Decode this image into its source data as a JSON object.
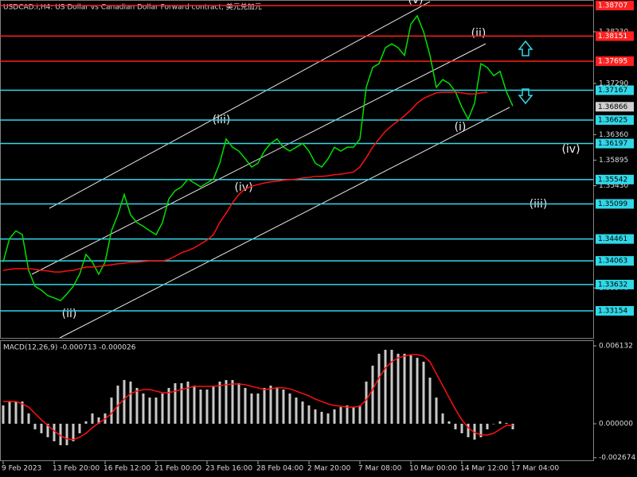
{
  "chart_data": [
    {
      "type": "line",
      "title": "USDCAD.i,H4: US Dollar vs Canadian Dollar Forward contract, 美元兑加元",
      "categories": [
        "9 Feb 2023",
        null,
        null,
        null,
        null,
        null,
        null,
        null,
        "13 Feb 20:00",
        null,
        null,
        null,
        null,
        null,
        null,
        null,
        "16 Feb 12:00",
        null,
        null,
        null,
        null,
        null,
        null,
        null,
        "21 Feb 00:00",
        null,
        null,
        null,
        null,
        null,
        null,
        null,
        "23 Feb 16:00",
        null,
        null,
        null,
        null,
        null,
        null,
        null,
        "28 Feb 04:00",
        null,
        null,
        null,
        null,
        null,
        null,
        null,
        "2 Mar 20:00",
        null,
        null,
        null,
        null,
        null,
        null,
        null,
        "7 Mar 08:00",
        null,
        null,
        null,
        null,
        null,
        null,
        null,
        "10 Mar 00:00",
        null,
        null,
        null,
        null,
        null,
        null,
        null,
        "14 Mar 12:00",
        null,
        null,
        null,
        null,
        null,
        null,
        null,
        "17 Mar 04:00"
      ],
      "series": [
        {
          "color": "#00e000",
          "values": [
            1.3404,
            1.3447,
            1.3461,
            1.3454,
            1.3389,
            1.336,
            1.3353,
            1.3343,
            1.3339,
            1.3334,
            1.3346,
            1.336,
            1.3382,
            1.3418,
            1.3404,
            1.3382,
            1.3404,
            1.3461,
            1.349,
            1.3527,
            1.349,
            1.3476,
            1.3469,
            1.3461,
            1.3454,
            1.3476,
            1.3519,
            1.3534,
            1.3541,
            1.3555,
            1.3548,
            1.3541,
            1.3548,
            1.3555,
            1.3584,
            1.3628,
            1.3613,
            1.3606,
            1.3592,
            1.3577,
            1.3584,
            1.3606,
            1.362,
            1.3628,
            1.3613,
            1.3606,
            1.3613,
            1.362,
            1.3606,
            1.3584,
            1.3577,
            1.3592,
            1.3613,
            1.3606,
            1.3613,
            1.3613,
            1.3628,
            1.3722,
            1.3758,
            1.3765,
            1.3794,
            1.3801,
            1.3794,
            1.378,
            1.3837,
            1.3852,
            1.3823,
            1.378,
            1.3722,
            1.3736,
            1.3729,
            1.3714,
            1.3686,
            1.3664,
            1.3693,
            1.3765,
            1.3758,
            1.3743,
            1.3751,
            1.3714,
            1.3688
          ]
        },
        {
          "color": "#ff1010",
          "values": [
            1.3389,
            1.3391,
            1.3392,
            1.3392,
            1.3392,
            1.3391,
            1.3389,
            1.3388,
            1.3386,
            1.3386,
            1.3388,
            1.3389,
            1.3392,
            1.3395,
            1.3395,
            1.3396,
            1.3398,
            1.3399,
            1.3401,
            1.3402,
            1.3404,
            1.3404,
            1.3405,
            1.3406,
            1.3406,
            1.3406,
            1.3409,
            1.3415,
            1.3421,
            1.3425,
            1.343,
            1.3437,
            1.3444,
            1.3454,
            1.3476,
            1.3493,
            1.3512,
            1.3527,
            1.3537,
            1.3542,
            1.3545,
            1.3548,
            1.355,
            1.3551,
            1.3553,
            1.3554,
            1.3555,
            1.3557,
            1.3558,
            1.356,
            1.356,
            1.3561,
            1.3563,
            1.3564,
            1.3566,
            1.3568,
            1.3577,
            1.3594,
            1.3613,
            1.3628,
            1.3642,
            1.3652,
            1.3661,
            1.367,
            1.3681,
            1.3693,
            1.3702,
            1.3707,
            1.3712,
            1.3713,
            1.3713,
            1.3713,
            1.3712,
            1.371,
            1.371,
            1.3712,
            1.3713,
            null,
            null,
            null,
            null
          ]
        }
      ],
      "ylim": [
        1.32662,
        1.38808
      ],
      "yticks": [
        {
          "value": 1.3823,
          "label": "1.38230"
        },
        {
          "value": 1.3729,
          "label": "1.37290"
        },
        {
          "value": 1.3636,
          "label": "1.36360"
        },
        {
          "value": 1.35895,
          "label": "1.35895"
        },
        {
          "value": 1.3543,
          "label": "1.35430"
        },
        {
          "value": 1.3357,
          "label": "1.33570"
        }
      ],
      "levels": [
        {
          "value": 1.38707,
          "color": "#ff2020"
        },
        {
          "value": 1.38151,
          "color": "#ff2020"
        },
        {
          "value": 1.37695,
          "color": "#ff2020"
        },
        {
          "value": 1.37167,
          "color": "#30d8e8"
        },
        {
          "value": 1.36625,
          "color": "#30d8e8"
        },
        {
          "value": 1.36197,
          "color": "#30d8e8"
        },
        {
          "value": 1.35542,
          "color": "#30d8e8"
        },
        {
          "value": 1.35099,
          "color": "#30d8e8"
        },
        {
          "value": 1.34461,
          "color": "#30d8e8"
        },
        {
          "value": 1.34063,
          "color": "#30d8e8"
        },
        {
          "value": 1.33632,
          "color": "#30d8e8"
        },
        {
          "value": 1.33154,
          "color": "#30d8e8"
        }
      ],
      "last_price": 1.36866,
      "annotations": [
        "(v)",
        "(ii)",
        "(iii)",
        "(iv)",
        "(ii)",
        "(i)",
        "(iv)",
        "(iii)"
      ]
    },
    {
      "type": "macd",
      "title": "MACD(12,26,9) -0.000713 -0.000026",
      "series": [
        {
          "color": "#c8c8c8",
          "values": [
            0.00144,
            0.00175,
            0.00175,
            0.00175,
            0.00081,
            -0.00044,
            -0.00075,
            -0.00106,
            -0.00138,
            -0.00169,
            -0.00169,
            -0.00138,
            -0.00075,
            0.00019,
            0.00081,
            0.0005,
            0.00081,
            0.00206,
            0.003,
            0.00344,
            0.00332,
            0.00282,
            0.00238,
            0.00206,
            0.00206,
            0.00238,
            0.00282,
            0.00319,
            0.00319,
            0.00332,
            0.003,
            0.00269,
            0.00269,
            0.003,
            0.00332,
            0.00344,
            0.00344,
            0.00319,
            0.00282,
            0.00238,
            0.00238,
            0.00282,
            0.003,
            0.00288,
            0.00269,
            0.00238,
            0.00206,
            0.00175,
            0.00144,
            0.00113,
            0.00094,
            0.00081,
            0.00113,
            0.00131,
            0.00144,
            0.00131,
            0.00144,
            0.00332,
            0.00457,
            0.00551,
            0.00582,
            0.00582,
            0.00551,
            0.00551,
            0.00538,
            0.00519,
            0.00488,
            0.00363,
            0.00206,
            0.00081,
            0.00019,
            -0.00044,
            -0.00075,
            -0.00106,
            -0.00125,
            -0.00106,
            -0.00044,
            0,
            0.00019,
            6e-05,
            -0.00044
          ]
        },
        {
          "color": "#ff1010",
          "values": [
            0.00175,
            0.00175,
            0.00175,
            0.00156,
            0.00131,
            0.00081,
            0.00031,
            -0.00013,
            -0.00056,
            -0.00094,
            -0.00119,
            -0.00125,
            -0.00106,
            -0.00075,
            -0.00031,
            6e-05,
            0.00038,
            0.00081,
            0.00144,
            0.00194,
            0.00238,
            0.00257,
            0.00269,
            0.00269,
            0.00257,
            0.00244,
            0.00244,
            0.00257,
            0.00269,
            0.00282,
            0.00294,
            0.00294,
            0.00294,
            0.00294,
            0.003,
            0.00307,
            0.00313,
            0.00313,
            0.00307,
            0.00294,
            0.00282,
            0.00269,
            0.00275,
            0.00282,
            0.00282,
            0.00275,
            0.00257,
            0.00238,
            0.00219,
            0.00194,
            0.00175,
            0.00156,
            0.00144,
            0.00138,
            0.00131,
            0.00131,
            0.00138,
            0.00188,
            0.00269,
            0.00363,
            0.00438,
            0.00488,
            0.00519,
            0.00532,
            0.00544,
            0.00544,
            0.00532,
            0.00488,
            0.00394,
            0.003,
            0.00206,
            0.00113,
            0.00031,
            -0.00031,
            -0.00069,
            -0.00088,
            -0.00088,
            -0.00075,
            -0.00044,
            -0.00013,
            -0.00013
          ]
        }
      ],
      "ylim": [
        -0.00294,
        0.00657
      ],
      "yticks": [
        0.006132,
        {
          "value": 0,
          "label": "0.000000"
        },
        -0.002674
      ]
    }
  ]
}
